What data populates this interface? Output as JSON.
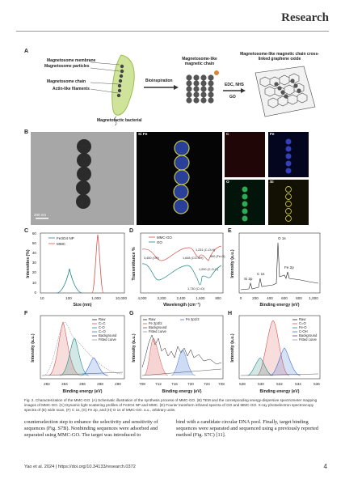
{
  "header": {
    "title": "Research"
  },
  "panel_a": {
    "label": "A",
    "bacterium_labels": [
      "Magnetosome membrane",
      "Magnetosome particles",
      "Magnetosome chain",
      "Actin-like filaments"
    ],
    "bacterium_caption": "Magnetotactic bacterial",
    "bioinspiration": "Bioinspiration",
    "chain_title": "Magnetosome-like magnetic chain",
    "edc_nhs": "EDC, NHS",
    "go": "GO",
    "crosslinked_title": "Magnetosome-like magnetic chain cross-linked graphene oxide"
  },
  "panel_b": {
    "label": "B",
    "scale_bar": "200 nm",
    "map_label": "Si Fe",
    "c_label": "C",
    "fe_label": "Fe",
    "o_label": "O",
    "si_label": "Si"
  },
  "chart_c": {
    "label": "C",
    "xlabel": "Size (nm)",
    "ylabel": "Intensities (%)",
    "xticks": [
      "10",
      "100",
      "1,000",
      "10,000"
    ],
    "yticks": [
      "0",
      "10",
      "20",
      "30",
      "40",
      "50",
      "60"
    ],
    "legend": [
      "Fe3O4 NP",
      "MMC"
    ]
  },
  "chart_d": {
    "label": "D",
    "xlabel": "Wavelength (cm⁻¹)",
    "ylabel": "Transmittance %",
    "xticks": [
      "4,000",
      "3,200",
      "2,400",
      "1,600",
      "800"
    ],
    "legend": [
      "MMC-GO",
      "GO"
    ],
    "annotations": [
      "1,231 (C-O-H)",
      "1,648 (CO-NH)",
      "590 (Fe-O)",
      "3,450 (OH)",
      "1,090 (C-O-C)",
      "1,730 (C=O)"
    ]
  },
  "chart_e": {
    "label": "E",
    "xlabel": "Binding energy (eV)",
    "ylabel": "Intensity (a.u.)",
    "xticks": [
      "0",
      "200",
      "400",
      "600",
      "800",
      "1,000"
    ],
    "peaks": [
      "O 1s",
      "Si 2p",
      "C 1s",
      "Fe 2p"
    ]
  },
  "chart_f": {
    "label": "F",
    "xlabel": "Binding energy (eV)",
    "ylabel": "Intensity (a.u.)",
    "xticks": [
      "282",
      "284",
      "286",
      "288",
      "290"
    ],
    "legend": [
      "Raw",
      "C=C",
      "C-O",
      "C=O",
      "Background",
      "Fitted curve"
    ]
  },
  "chart_g": {
    "label": "G",
    "xlabel": "Binding energy (eV)",
    "ylabel": "Intensity (a.u.)",
    "xticks": [
      "708",
      "712",
      "716",
      "720",
      "724",
      "728"
    ],
    "legend": [
      "Raw",
      "Fe 2p3/2",
      "Fe 2p1/2",
      "Background",
      "Fitted curve"
    ]
  },
  "chart_h": {
    "label": "H",
    "xlabel": "Binding energy (eV)",
    "ylabel": "Intensity (a.u.)",
    "xticks": [
      "528",
      "530",
      "532",
      "534",
      "536"
    ],
    "legend": [
      "Raw",
      "C=O",
      "Fe-O",
      "C-OH",
      "Background",
      "Fitted curve"
    ]
  },
  "caption": "Fig. 2. Characterization of the MMC-GO. (A) Schematic illustration of the synthesis process of MMC-GO. (B) TEM and the corresponding energy-dispersive spectrometer mapping images of MMC-GO. (C) Dynamic light scattering profiles of Fe3O4 NP and MMC. (D) Fourier transform infrared spectra of GO and MMC-GO. X-ray photoelectron spectroscopy spectra of (E) wide scan, (F) C 1s, (G) Fe 2p, and (H) O 1s of MMC-GO. a.u., arbitrary units.",
  "body": {
    "left": "counterselection step to enhance the selectivity and sensitivity of sequences (Fig. S7B). Nonbinding sequences were adsorbed and separated using MMC-GO. The target was introduced to",
    "right": "bind with a candidate circular DNA pool. Finally, target binding sequences were separated and sequenced using a previously reported method (Fig. S7C) [11]."
  },
  "footer": {
    "citation": "Yao et al. 2024 | https://doi.org/10.34133/research.0372",
    "page": "4"
  },
  "colors": {
    "red": "#d9534f",
    "teal": "#1f8a84",
    "blue": "#3a6fd8",
    "dark": "#222222"
  }
}
